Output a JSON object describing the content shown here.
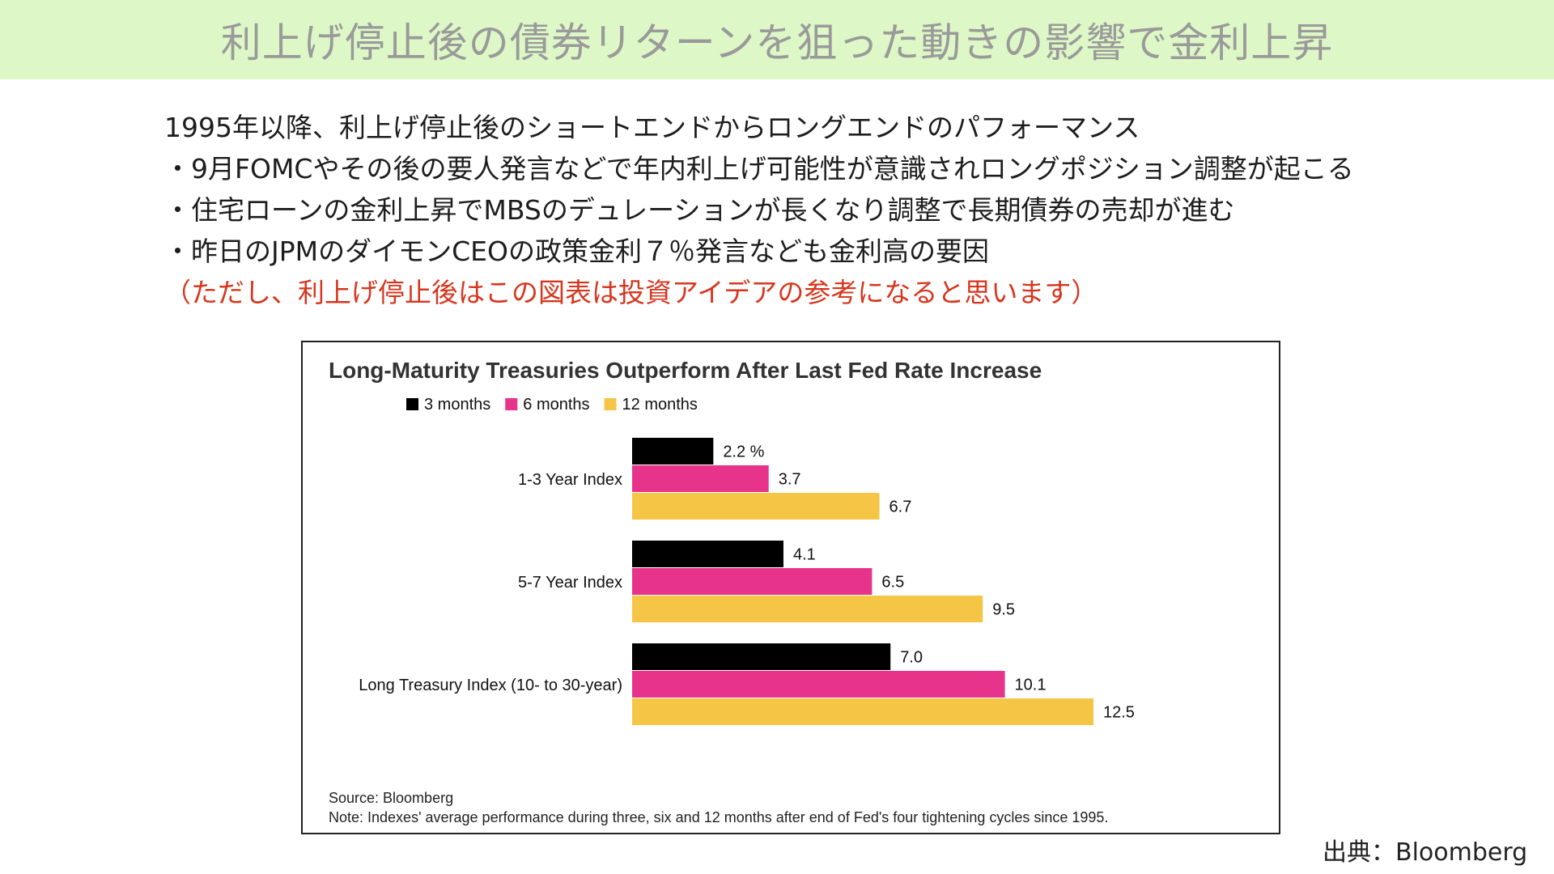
{
  "slide": {
    "title": "利上げ停止後の債券リターンを狙った動きの影響で金利上昇",
    "lines": [
      "1995年以降、利上げ停止後のショートエンドからロングエンドのパフォーマンス",
      "・9月FOMCやその後の要人発言などで年内利上げ可能性が意識されロングポジション調整が起こる",
      "・住宅ローンの金利上昇でMBSのデュレーションが長くなり調整で長期債券の売却が進む",
      "・昨日のJPMのダイモンCEOの政策金利７％発言なども金利高の要因",
      "（ただし、利上げ停止後はこの図表は投資アイデアの参考になると思います）"
    ],
    "source": "出典：Bloomberg",
    "note_color": "#d7361e"
  },
  "chart_data": {
    "type": "bar",
    "orientation": "horizontal",
    "title": "Long-Maturity Treasuries Outperform After Last Fed Rate Increase",
    "categories": [
      "1-3 Year Index",
      "5-7 Year Index",
      "Long Treasury Index (10- to 30-year)"
    ],
    "series": [
      {
        "name": "3 months",
        "color": "#000000",
        "values": [
          2.2,
          4.1,
          7.0
        ],
        "labels": [
          "2.2 %",
          "4.1",
          "7.0"
        ]
      },
      {
        "name": "6 months",
        "color": "#e8338b",
        "values": [
          3.7,
          6.5,
          10.1
        ],
        "labels": [
          "3.7",
          "6.5",
          "10.1"
        ]
      },
      {
        "name": "12 months",
        "color": "#f5c645",
        "values": [
          6.7,
          9.5,
          12.5
        ],
        "labels": [
          "6.7",
          "9.5",
          "12.5"
        ]
      }
    ],
    "xlim": [
      0,
      12.5
    ],
    "grid": false,
    "legend_position": "top-left",
    "footnotes": [
      "Source: Bloomberg",
      "Note: Indexes' average performance during three, six and 12 months after end of Fed's four tightening cycles since 1995."
    ]
  }
}
